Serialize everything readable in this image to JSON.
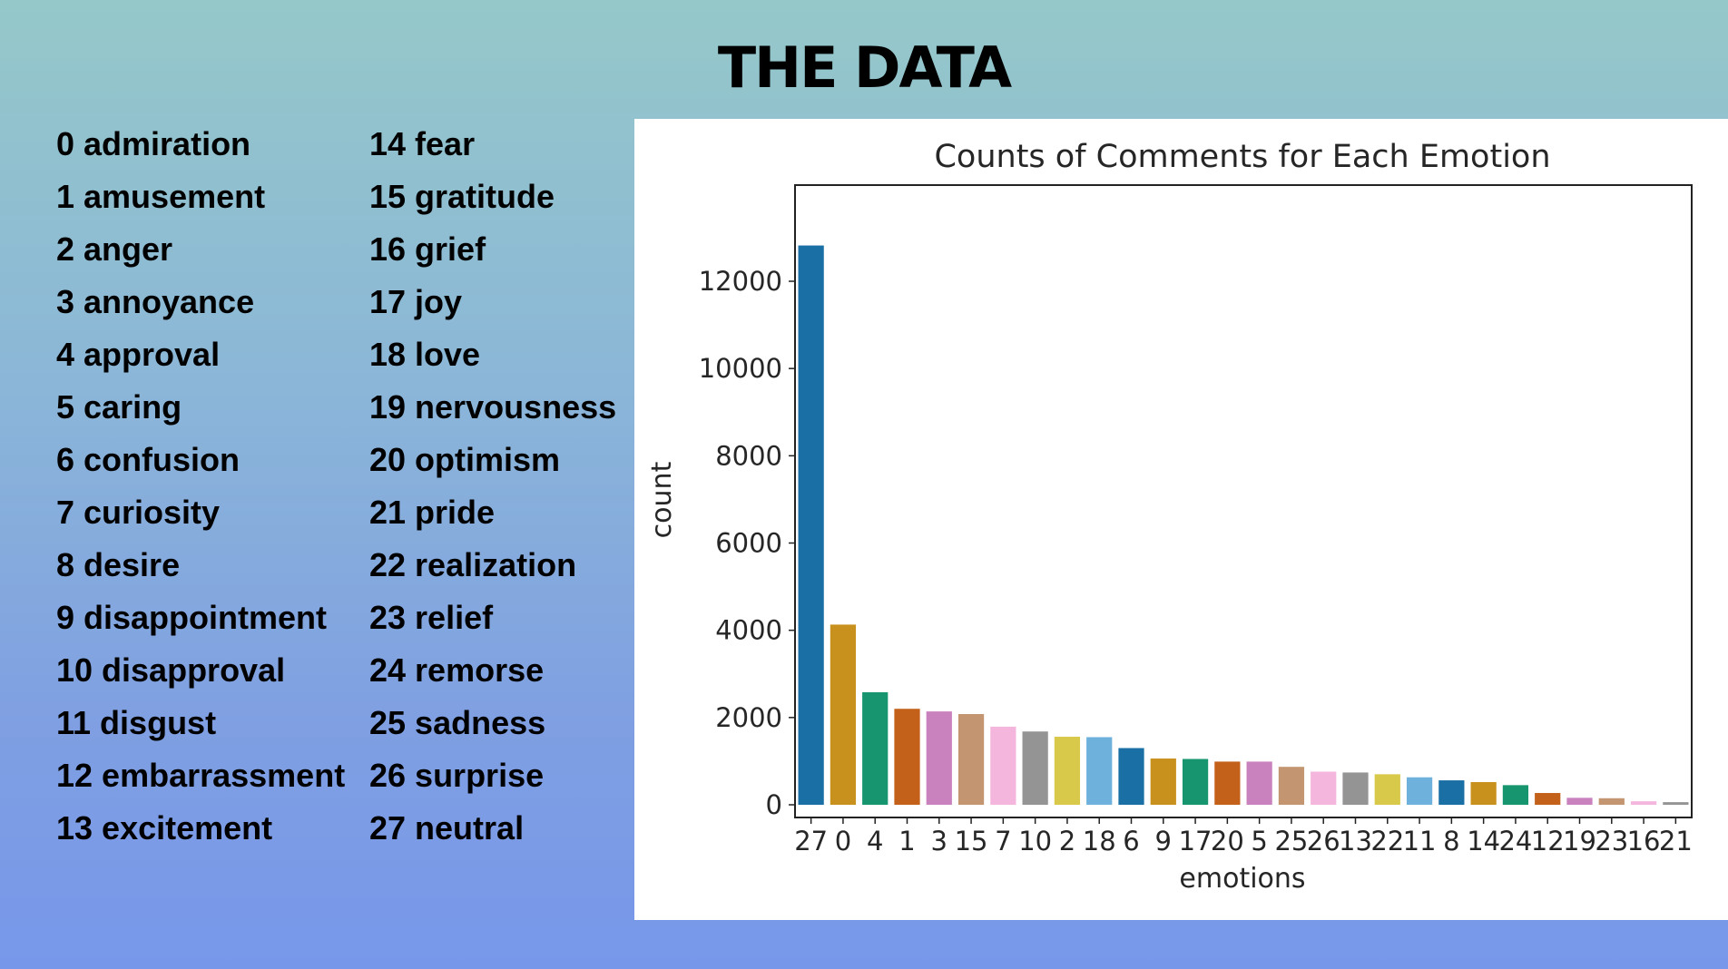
{
  "slide": {
    "title": "THE DATA"
  },
  "legend": {
    "column1": [
      "0 admiration",
      "1 amusement",
      "2 anger",
      "3 annoyance",
      "4 approval",
      "5 caring",
      "6 confusion",
      "7 curiosity",
      "8 desire",
      "9 disappointment",
      "10 disapproval",
      "11 disgust",
      "12 embarrassment",
      "13 excitement"
    ],
    "column2": [
      "14 fear",
      "15 gratitude",
      "16 grief",
      "17 joy",
      "18 love",
      "19 nervousness",
      "20 optimism",
      "21 pride",
      "22 realization",
      "23 relief",
      "24 remorse",
      "25 sadness",
      "26 surprise",
      "27 neutral"
    ]
  },
  "chart_data": {
    "type": "bar",
    "title": "Counts of Comments for Each Emotion",
    "xlabel": "emotions",
    "ylabel": "count",
    "ylim": [
      0,
      13500
    ],
    "yticks": [
      0,
      2000,
      4000,
      6000,
      8000,
      10000,
      12000
    ],
    "grid": false,
    "categories": [
      "27",
      "0",
      "4",
      "1",
      "3",
      "15",
      "7",
      "10",
      "2",
      "18",
      "6",
      "9",
      "17",
      "20",
      "5",
      "25",
      "26",
      "13",
      "22",
      "11",
      "8",
      "14",
      "24",
      "12",
      "19",
      "23",
      "16",
      "21"
    ],
    "values": [
      12820,
      4130,
      2580,
      2200,
      2140,
      2080,
      1790,
      1680,
      1560,
      1550,
      1300,
      1060,
      1050,
      990,
      990,
      870,
      760,
      740,
      700,
      630,
      560,
      520,
      450,
      270,
      160,
      150,
      80,
      60
    ],
    "colors": [
      "#1a6fa5",
      "#c8901d",
      "#17956f",
      "#c3601a",
      "#ca82be",
      "#c39671",
      "#f4b6dd",
      "#949494",
      "#d8c94a",
      "#6db1dc",
      "#1a6fa5",
      "#c8901d",
      "#17956f",
      "#c3601a",
      "#ca82be",
      "#c39671",
      "#f4b6dd",
      "#949494",
      "#d8c94a",
      "#6db1dc",
      "#1a6fa5",
      "#c8901d",
      "#17956f",
      "#c3601a",
      "#ca82be",
      "#c39671",
      "#f4b6dd",
      "#949494"
    ]
  }
}
